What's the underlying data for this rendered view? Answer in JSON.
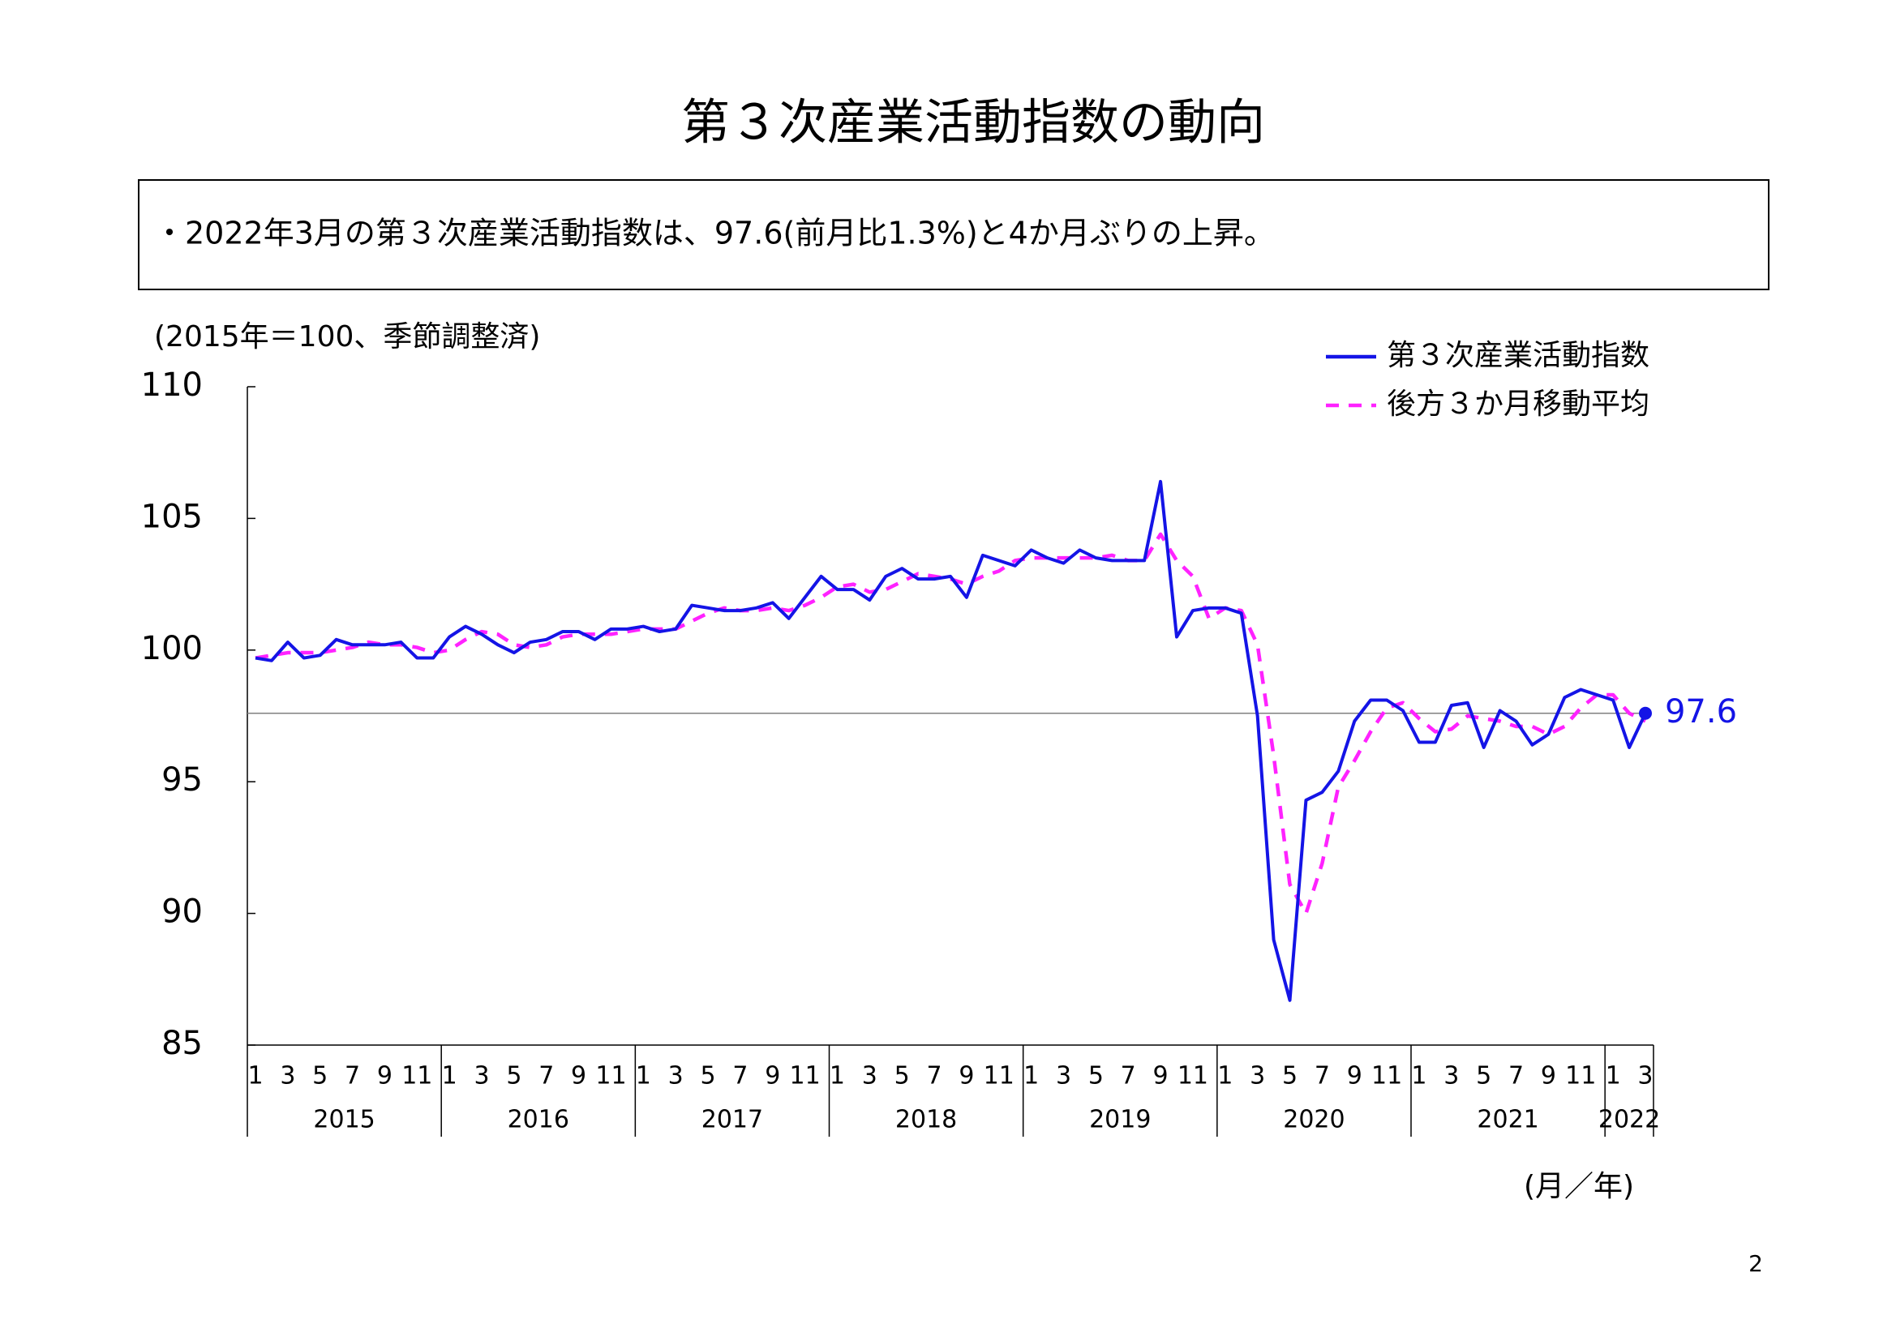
{
  "chart_data": {
    "type": "line",
    "title": "第３次産業活動指数の動向",
    "subtitle": "・2022年3月の第３次産業活動指数は、97.6(前月比1.3%)と4か月ぶりの上昇。",
    "y_label": "(2015年＝100、季節調整済)",
    "x_label": "(月／年)",
    "categories": [
      "1",
      null,
      "3",
      null,
      "5",
      null,
      "7",
      null,
      "9",
      null,
      "11",
      null,
      "1",
      null,
      "3",
      null,
      "5",
      null,
      "7",
      null,
      "9",
      null,
      "11",
      null,
      "1",
      null,
      "3",
      null,
      "5",
      null,
      "7",
      null,
      "9",
      null,
      "11",
      null,
      "1",
      null,
      "3",
      null,
      "5",
      null,
      "7",
      null,
      "9",
      null,
      "11",
      null,
      "1",
      null,
      "3",
      null,
      "5",
      null,
      "7",
      null,
      "9",
      null,
      "11",
      null,
      "1",
      null,
      "3",
      null,
      "5",
      null,
      "7",
      null,
      "9",
      null,
      "11",
      null,
      "1",
      null,
      "3",
      null,
      "5",
      null,
      "7",
      null,
      "9",
      null,
      "11",
      null,
      "1",
      null,
      "3"
    ],
    "years": [
      "2015",
      "2016",
      "2017",
      "2018",
      "2019",
      "2020",
      "2021",
      "2022"
    ],
    "series": [
      {
        "name": "第３次産業活動指数",
        "color": "#1414e6",
        "style": "solid",
        "reference_line": true,
        "label_last": true,
        "values": [
          99.7,
          99.6,
          100.3,
          99.7,
          99.8,
          100.4,
          100.2,
          100.2,
          100.2,
          100.3,
          99.7,
          99.7,
          100.5,
          100.9,
          100.6,
          100.2,
          99.9,
          100.3,
          100.4,
          100.7,
          100.7,
          100.4,
          100.8,
          100.8,
          100.9,
          100.7,
          100.8,
          101.7,
          101.6,
          101.5,
          101.5,
          101.6,
          101.8,
          101.2,
          102.0,
          102.8,
          102.3,
          102.3,
          101.9,
          102.8,
          103.1,
          102.7,
          102.7,
          102.8,
          102.0,
          103.6,
          103.4,
          103.2,
          103.8,
          103.5,
          103.3,
          103.8,
          103.5,
          103.4,
          103.4,
          103.4,
          106.4,
          100.5,
          101.5,
          101.6,
          101.6,
          101.4,
          97.5,
          89.0,
          86.7,
          94.3,
          94.6,
          95.4,
          97.3,
          98.1,
          98.1,
          97.7,
          96.5,
          96.5,
          97.9,
          98.0,
          96.3,
          97.7,
          97.3,
          96.4,
          96.8,
          98.2,
          98.5,
          98.3,
          98.1,
          96.3,
          97.6
        ]
      },
      {
        "name": "後方３か月移動平均",
        "color": "#ff22ff",
        "style": "dashed",
        "values": [
          99.7,
          99.8,
          99.9,
          99.9,
          99.9,
          100.0,
          100.1,
          100.3,
          100.2,
          100.2,
          100.1,
          99.9,
          100.0,
          100.4,
          100.7,
          100.6,
          100.2,
          100.1,
          100.2,
          100.5,
          100.6,
          100.6,
          100.6,
          100.7,
          100.8,
          100.8,
          100.8,
          101.1,
          101.4,
          101.6,
          101.5,
          101.5,
          101.6,
          101.5,
          101.7,
          102.0,
          102.4,
          102.5,
          102.2,
          102.3,
          102.6,
          102.9,
          102.8,
          102.7,
          102.5,
          102.8,
          103.0,
          103.4,
          103.5,
          103.5,
          103.5,
          103.5,
          103.5,
          103.6,
          103.4,
          103.4,
          104.4,
          103.4,
          102.8,
          101.2,
          101.6,
          101.5,
          100.2,
          96.0,
          91.1,
          90.0,
          91.9,
          94.8,
          95.8,
          96.9,
          97.8,
          98.0,
          97.4,
          96.9,
          97.0,
          97.5,
          97.4,
          97.3,
          97.1,
          97.1,
          96.8,
          97.1,
          97.8,
          98.3,
          98.3,
          97.6,
          97.3
        ]
      }
    ],
    "ylim": [
      85,
      110
    ],
    "yticks": [
      85,
      90,
      95,
      100,
      105,
      110
    ]
  },
  "page_number": "2"
}
